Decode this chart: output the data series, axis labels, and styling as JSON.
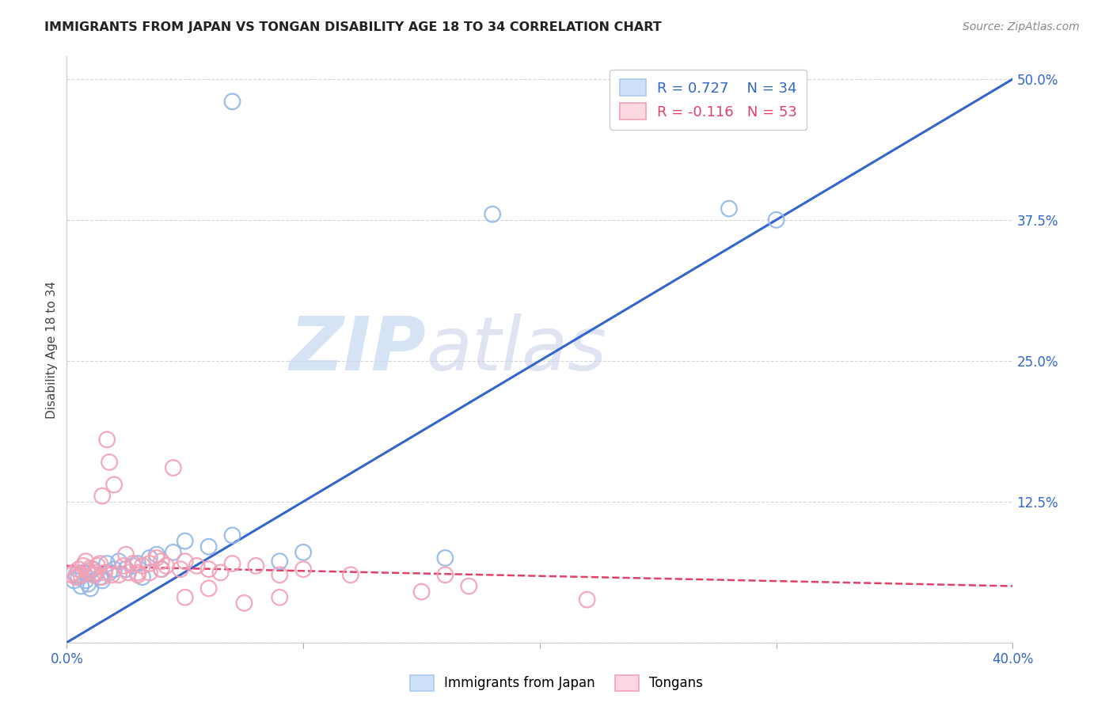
{
  "title": "IMMIGRANTS FROM JAPAN VS TONGAN DISABILITY AGE 18 TO 34 CORRELATION CHART",
  "source": "Source: ZipAtlas.com",
  "ylabel": "Disability Age 18 to 34",
  "legend_blue_r": "R = 0.727",
  "legend_blue_n": "N = 34",
  "legend_pink_r": "R = -0.116",
  "legend_pink_n": "N = 53",
  "legend_label_blue": "Immigrants from Japan",
  "legend_label_pink": "Tongans",
  "xlim": [
    0.0,
    0.4
  ],
  "ylim": [
    0.0,
    0.52
  ],
  "yticks": [
    0.0,
    0.125,
    0.25,
    0.375,
    0.5
  ],
  "ytick_labels": [
    "",
    "12.5%",
    "25.0%",
    "37.5%",
    "50.0%"
  ],
  "blue_color": "#93b6e8",
  "pink_color": "#f4a0b5",
  "blue_line_color": "#3366cc",
  "pink_line_color": "#e0406a",
  "blue_scatter_x": [
    0.003,
    0.004,
    0.005,
    0.006,
    0.007,
    0.008,
    0.009,
    0.01,
    0.011,
    0.012,
    0.014,
    0.015,
    0.017,
    0.018,
    0.02,
    0.022,
    0.025,
    0.028,
    0.03,
    0.032,
    0.035,
    0.038,
    0.04,
    0.045,
    0.05,
    0.06,
    0.07,
    0.09,
    0.1,
    0.16,
    0.18,
    0.28,
    0.3,
    0.07
  ],
  "blue_scatter_y": [
    0.055,
    0.06,
    0.058,
    0.05,
    0.062,
    0.055,
    0.052,
    0.048,
    0.065,
    0.06,
    0.058,
    0.055,
    0.07,
    0.062,
    0.065,
    0.072,
    0.065,
    0.068,
    0.07,
    0.058,
    0.075,
    0.078,
    0.065,
    0.08,
    0.09,
    0.085,
    0.095,
    0.072,
    0.08,
    0.075,
    0.38,
    0.385,
    0.375,
    0.48
  ],
  "pink_scatter_x": [
    0.002,
    0.003,
    0.004,
    0.005,
    0.006,
    0.007,
    0.008,
    0.009,
    0.01,
    0.011,
    0.012,
    0.013,
    0.014,
    0.015,
    0.016,
    0.018,
    0.02,
    0.022,
    0.024,
    0.026,
    0.028,
    0.03,
    0.032,
    0.035,
    0.038,
    0.04,
    0.042,
    0.045,
    0.048,
    0.05,
    0.055,
    0.06,
    0.065,
    0.07,
    0.08,
    0.09,
    0.1,
    0.12,
    0.15,
    0.16,
    0.17,
    0.22,
    0.015,
    0.017,
    0.019,
    0.025,
    0.03,
    0.035,
    0.04,
    0.05,
    0.06,
    0.075,
    0.09
  ],
  "pink_scatter_y": [
    0.06,
    0.062,
    0.058,
    0.065,
    0.06,
    0.068,
    0.072,
    0.063,
    0.066,
    0.06,
    0.062,
    0.068,
    0.07,
    0.058,
    0.062,
    0.16,
    0.14,
    0.06,
    0.068,
    0.062,
    0.07,
    0.06,
    0.068,
    0.062,
    0.075,
    0.072,
    0.068,
    0.155,
    0.065,
    0.072,
    0.068,
    0.065,
    0.062,
    0.07,
    0.068,
    0.06,
    0.065,
    0.06,
    0.045,
    0.06,
    0.05,
    0.038,
    0.13,
    0.18,
    0.06,
    0.078,
    0.062,
    0.07,
    0.065,
    0.04,
    0.048,
    0.035,
    0.04
  ],
  "blue_line_x": [
    0.0,
    0.4
  ],
  "blue_line_y": [
    0.0,
    0.5
  ],
  "pink_line_x": [
    0.0,
    0.4
  ],
  "pink_line_y": [
    0.068,
    0.05
  ]
}
